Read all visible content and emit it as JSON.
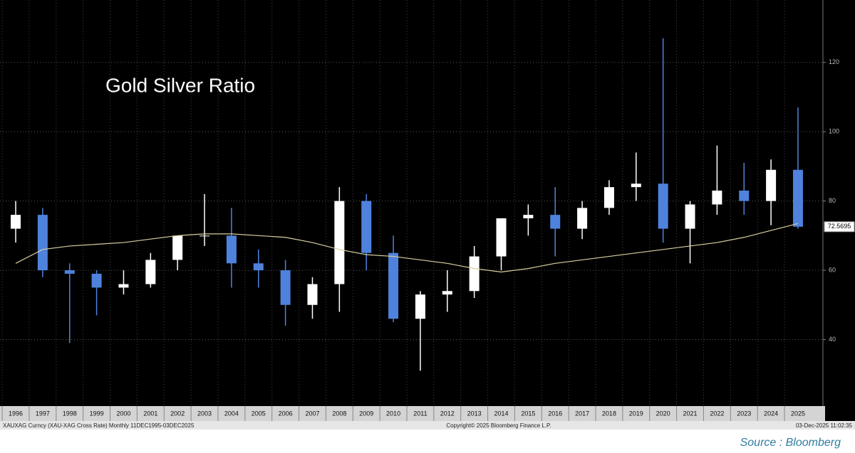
{
  "chart_data": {
    "type": "candlestick",
    "title": "Gold Silver Ratio",
    "categories": [
      "1996",
      "1997",
      "1998",
      "1999",
      "2000",
      "2001",
      "2002",
      "2003",
      "2004",
      "2005",
      "2006",
      "2007",
      "2008",
      "2009",
      "2010",
      "2011",
      "2012",
      "2013",
      "2014",
      "2015",
      "2016",
      "2017",
      "2018",
      "2019",
      "2020",
      "2021",
      "2022",
      "2023",
      "2024",
      "2025"
    ],
    "open": [
      72,
      76,
      60,
      59,
      55,
      56,
      63,
      70,
      70,
      62,
      60,
      50,
      56,
      80,
      65,
      46,
      53,
      54,
      64,
      75,
      76,
      72,
      78,
      84,
      85,
      72,
      79,
      83,
      80,
      89
    ],
    "high": [
      80,
      78,
      62,
      60,
      60,
      65,
      70,
      82,
      78,
      66,
      63,
      58,
      84,
      82,
      70,
      54,
      60,
      67,
      75,
      79,
      84,
      80,
      86,
      94,
      127,
      80,
      96,
      91,
      92,
      107
    ],
    "low": [
      68,
      58,
      39,
      47,
      53,
      55,
      60,
      67,
      55,
      55,
      44,
      46,
      48,
      60,
      45,
      31,
      48,
      52,
      60,
      70,
      64,
      69,
      76,
      80,
      68,
      62,
      76,
      76,
      73,
      72
    ],
    "close": [
      76,
      60,
      59,
      55,
      56,
      63,
      70,
      70,
      62,
      60,
      50,
      56,
      80,
      65,
      46,
      53,
      54,
      64,
      75,
      76,
      72,
      78,
      84,
      85,
      72,
      79,
      83,
      80,
      89,
      72.5695
    ],
    "up_color": "#ffffff",
    "down_color": "#4f82dc",
    "moving_average": {
      "color": "#d8cfa0",
      "values": [
        62,
        66,
        67,
        67.5,
        68,
        69,
        70,
        70.5,
        70.5,
        70,
        69.5,
        68,
        66,
        64.5,
        64,
        63,
        62,
        60.5,
        59.5,
        60.5,
        62,
        63,
        64,
        65,
        66,
        67,
        68,
        69.5,
        71.5,
        73.5
      ]
    },
    "ylim": [
      21,
      137
    ],
    "yticks": [
      40,
      60,
      80,
      100,
      120
    ],
    "grid": true,
    "footer": {
      "left": "XAUXAG Curncy (XAU-XAG Cross Rate) Monthly 11DEC1995-03DEC2025",
      "center": "Copyright© 2025 Bloomberg Finance L.P.",
      "right": "03-Dec-2025 11:02:35"
    },
    "source": "Source : Bloomberg"
  }
}
